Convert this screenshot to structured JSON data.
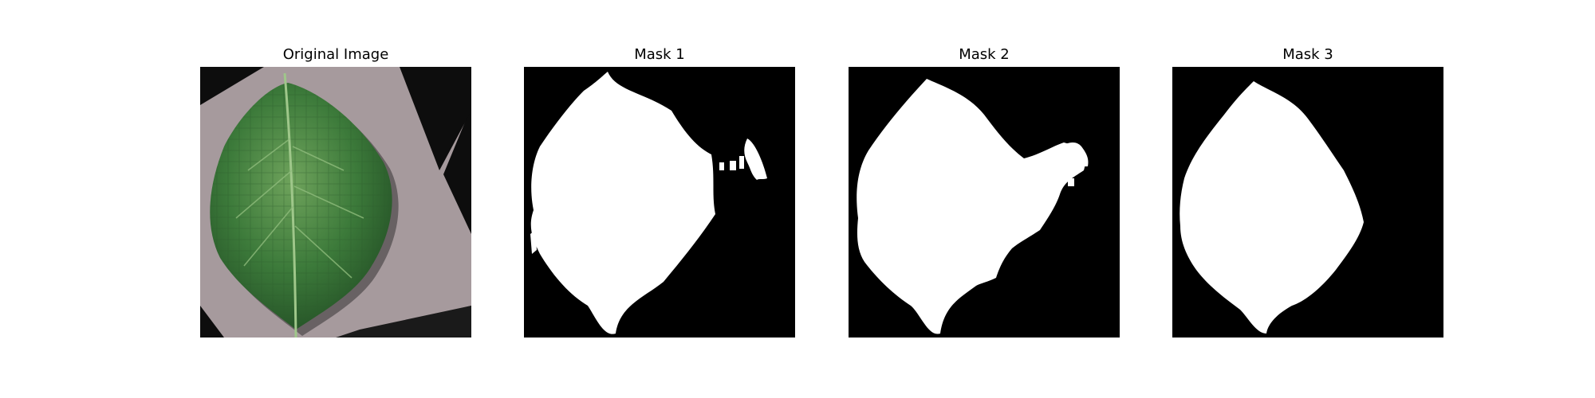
{
  "panels": [
    {
      "title": "Original Image",
      "kind": "photo"
    },
    {
      "title": "Mask 1",
      "kind": "mask"
    },
    {
      "title": "Mask 2",
      "kind": "mask"
    },
    {
      "title": "Mask 3",
      "kind": "mask"
    }
  ],
  "colors": {
    "background": "#ffffff",
    "mask_background": "#000000",
    "mask_foreground": "#ffffff",
    "photo_background": "#a69a9d",
    "leaf_green": "#3c7a3a",
    "leaf_highlight": "#6fa35c",
    "leaf_shadow": "#234f25"
  }
}
